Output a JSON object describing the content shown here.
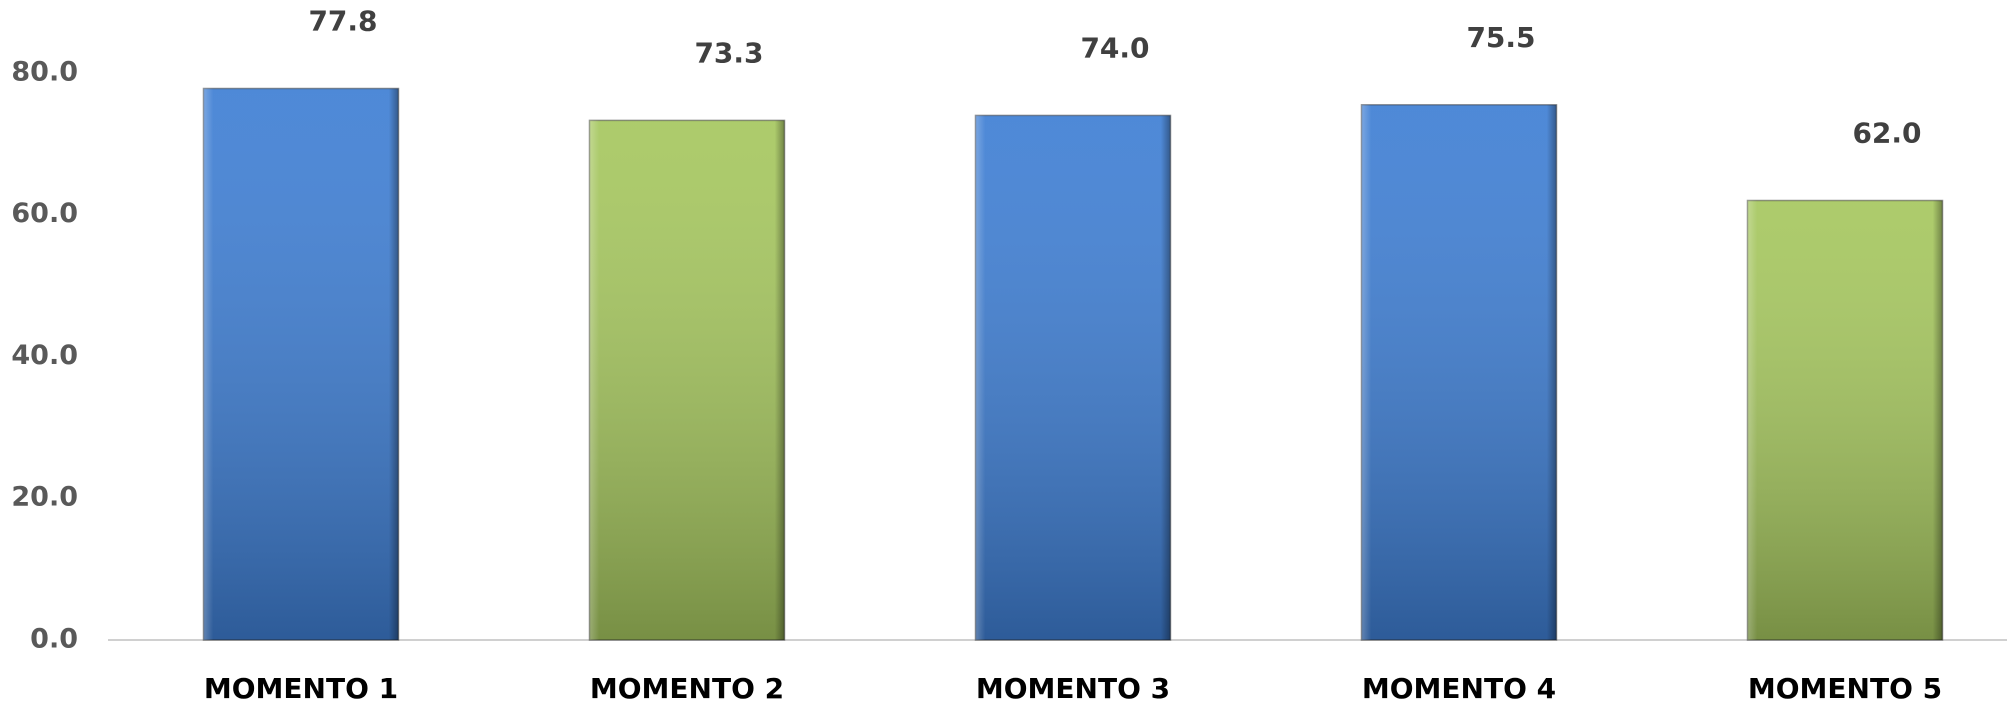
{
  "chart_data": {
    "type": "bar",
    "categories": [
      "MOMENTO 1",
      "MOMENTO 2",
      "MOMENTO 3",
      "MOMENTO 4",
      "MOMENTO 5"
    ],
    "values": [
      77.8,
      73.3,
      74.0,
      75.5,
      62.0
    ],
    "value_labels": [
      "77.8",
      "73.3",
      "74.0",
      "75.5",
      "62.0"
    ],
    "colors": [
      "#3f7fd4",
      "#a6c75f",
      "#3f7fd4",
      "#3f7fd4",
      "#a6c75f"
    ],
    "ylim": [
      0,
      90
    ],
    "yticks": [
      {
        "value": 0,
        "label": "0.0"
      },
      {
        "value": 20,
        "label": "20.0"
      },
      {
        "value": 40,
        "label": "40.0"
      },
      {
        "value": 60,
        "label": "60.0"
      },
      {
        "value": 80,
        "label": "80.0"
      }
    ],
    "grid": false
  }
}
